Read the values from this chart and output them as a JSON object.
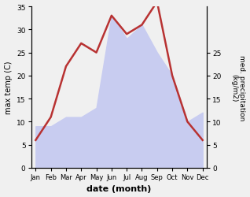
{
  "months": [
    "Jan",
    "Feb",
    "Mar",
    "Apr",
    "May",
    "Jun",
    "Jul",
    "Aug",
    "Sep",
    "Oct",
    "Nov",
    "Dec"
  ],
  "temp": [
    6,
    11,
    22,
    27,
    25,
    33,
    29,
    31,
    36,
    20,
    10,
    6
  ],
  "precip": [
    9,
    9,
    11,
    11,
    13,
    33,
    28,
    31,
    25,
    20,
    10,
    12
  ],
  "temp_color": "#b83232",
  "precip_fill_color": "#c8ccf0",
  "xlabel": "date (month)",
  "ylabel_left": "max temp (C)",
  "ylabel_right": "med. precipitation\n(kg/m2)",
  "ylim_left": [
    0,
    35
  ],
  "ylim_right": [
    0,
    35
  ],
  "yticks_left": [
    0,
    5,
    10,
    15,
    20,
    25,
    30,
    35
  ],
  "yticks_right": [
    0,
    5,
    10,
    15,
    20,
    25
  ],
  "bg_color": "#f0f0f0",
  "line_width": 1.8
}
